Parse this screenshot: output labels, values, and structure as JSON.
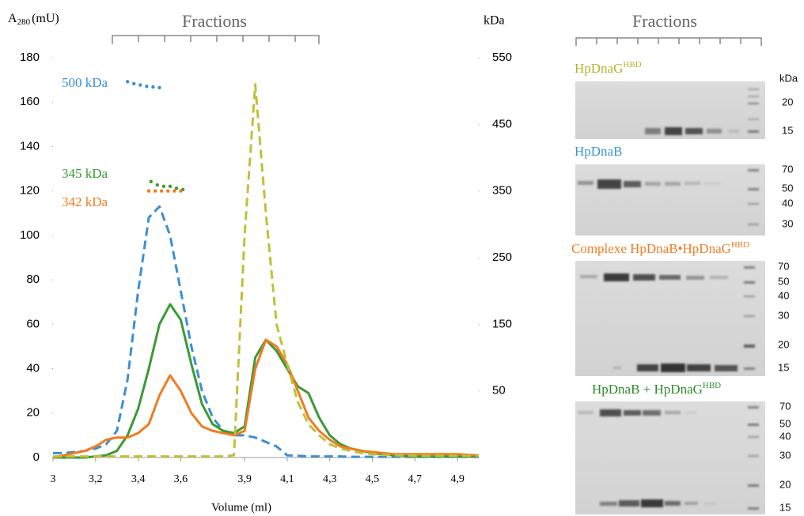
{
  "chart_data": {
    "type": "line",
    "ylabel": "A",
    "ylabel_sub": "280",
    "ylabel_unit": "(mU)",
    "y2label": "kDa",
    "top_label": "Fractions",
    "xlabel": "Volume (ml)",
    "xlim": [
      3,
      5.0
    ],
    "xticks": [
      3,
      {
        "value": 3.2,
        "label": "3,2"
      },
      {
        "value": 3.4,
        "label": "3,4"
      },
      {
        "value": 3.6,
        "label": "3,6"
      },
      {
        "value": 3.9,
        "label": "3,9"
      },
      {
        "value": 4.1,
        "label": "4,1"
      },
      {
        "value": 4.3,
        "label": "4,3"
      },
      {
        "value": 4.5,
        "label": "4,5"
      },
      {
        "value": 4.7,
        "label": "4,7"
      },
      {
        "value": 4.9,
        "label": "4,9"
      }
    ],
    "ylim": [
      0,
      180
    ],
    "yticks": [
      0,
      20,
      40,
      60,
      80,
      100,
      120,
      140,
      160,
      180
    ],
    "y2lim": [
      -50,
      550
    ],
    "y2ticks": [
      50,
      150,
      250,
      350,
      450,
      550
    ],
    "grid": false,
    "annotations": [
      "500 kDa",
      "345 kDa",
      "342 kDa"
    ],
    "series": [
      {
        "color": "#3d8fd1",
        "style": "dashed",
        "axis": "y",
        "x": [
          3.0,
          3.05,
          3.1,
          3.15,
          3.2,
          3.25,
          3.3,
          3.35,
          3.4,
          3.45,
          3.5,
          3.55,
          3.6,
          3.65,
          3.7,
          3.75,
          3.8,
          3.85,
          3.9,
          3.95,
          4.0,
          4.05,
          4.1,
          4.15,
          4.2,
          4.25,
          4.3,
          4.35,
          4.4,
          4.45,
          4.5,
          4.55,
          4.6,
          4.65,
          4.7,
          4.75,
          4.8,
          4.85,
          4.9,
          4.95,
          5.0
        ],
        "values": [
          2,
          2,
          2.5,
          3,
          4,
          6,
          12,
          35,
          75,
          108,
          113,
          100,
          75,
          50,
          30,
          18,
          12,
          10,
          10,
          9,
          7,
          5,
          1,
          0.8,
          0.5,
          0.5,
          0.5,
          0.5,
          0.3,
          0.3,
          0.3,
          0.3,
          0.3,
          0.3,
          0.3,
          0.3,
          0.3,
          0.3,
          0.3,
          0.3,
          0.3
        ]
      },
      {
        "color": "#3a9a35",
        "style": "solid",
        "axis": "y",
        "x": [
          3.0,
          3.05,
          3.1,
          3.15,
          3.2,
          3.25,
          3.3,
          3.35,
          3.4,
          3.45,
          3.5,
          3.55,
          3.6,
          3.65,
          3.7,
          3.75,
          3.8,
          3.85,
          3.9,
          3.95,
          4.0,
          4.05,
          4.1,
          4.15,
          4.2,
          4.25,
          4.3,
          4.35,
          4.4,
          4.45,
          4.5,
          4.55,
          4.6,
          4.65,
          4.7,
          4.75,
          4.8,
          4.85,
          4.9,
          4.95,
          5.0
        ],
        "values": [
          0,
          0,
          0,
          0,
          0.5,
          1,
          3,
          10,
          22,
          40,
          60,
          69,
          62,
          42,
          24,
          15,
          12,
          11,
          14,
          45,
          53,
          48,
          40,
          32,
          29,
          18,
          10,
          6,
          4,
          3,
          2,
          1.5,
          1,
          0.8,
          0.5,
          0.5,
          0.5,
          0.5,
          0.5,
          0.5,
          0.5
        ]
      },
      {
        "color": "#f07b20",
        "style": "solid",
        "axis": "y",
        "x": [
          3.0,
          3.05,
          3.1,
          3.15,
          3.2,
          3.25,
          3.3,
          3.35,
          3.4,
          3.45,
          3.5,
          3.55,
          3.6,
          3.65,
          3.7,
          3.75,
          3.8,
          3.85,
          3.9,
          3.95,
          4.0,
          4.05,
          4.1,
          4.15,
          4.2,
          4.25,
          4.3,
          4.35,
          4.4,
          4.45,
          4.5,
          4.55,
          4.6,
          4.65,
          4.7,
          4.75,
          4.8,
          4.85,
          4.9,
          4.95,
          5.0
        ],
        "values": [
          0,
          1,
          2,
          3,
          5,
          8,
          9,
          9,
          11,
          15,
          28,
          37,
          30,
          20,
          14,
          12,
          11,
          10,
          12,
          40,
          53,
          50,
          42,
          30,
          18,
          12,
          8,
          5,
          4,
          3,
          2.5,
          2,
          1.5,
          1.5,
          1.5,
          1.5,
          1.5,
          1.5,
          1.5,
          1.2,
          1
        ]
      },
      {
        "color": "#c0c03a",
        "style": "dashed",
        "axis": "y",
        "x": [
          3.0,
          3.05,
          3.1,
          3.15,
          3.2,
          3.25,
          3.3,
          3.35,
          3.4,
          3.45,
          3.5,
          3.55,
          3.6,
          3.65,
          3.7,
          3.75,
          3.8,
          3.85,
          3.9,
          3.95,
          4.0,
          4.05,
          4.1,
          4.15,
          4.2,
          4.25,
          4.3,
          4.35,
          4.4,
          4.45,
          4.5,
          4.55,
          4.6,
          4.65,
          4.7,
          4.75,
          4.8,
          4.85,
          4.9,
          4.95,
          5.0
        ],
        "values": [
          0.5,
          0.5,
          0.5,
          0.5,
          0.5,
          0.5,
          0.5,
          0.5,
          0.5,
          0.5,
          0.5,
          0.5,
          0.5,
          0.5,
          0.5,
          0.5,
          0.5,
          1,
          100,
          168,
          110,
          60,
          42,
          25,
          15,
          10,
          6,
          4,
          3,
          2,
          1.5,
          1.2,
          1,
          1,
          0.8,
          0.8,
          0.8,
          0.8,
          0.8,
          0.8,
          0.8
        ]
      },
      {
        "color": "#3d8fd1",
        "style": "dots",
        "axis": "y2",
        "x": [
          3.35,
          3.38,
          3.41,
          3.44,
          3.47,
          3.5
        ],
        "values": [
          514,
          511,
          509,
          507,
          506,
          505
        ]
      },
      {
        "color": "#3a9a35",
        "style": "dots",
        "axis": "y2",
        "x": [
          3.46,
          3.49,
          3.52,
          3.55,
          3.58,
          3.61
        ],
        "values": [
          364,
          359,
          357,
          357,
          354,
          352
        ]
      },
      {
        "color": "#f07b20",
        "style": "dots",
        "axis": "y2",
        "x": [
          3.45,
          3.48,
          3.51,
          3.54,
          3.57,
          3.6
        ],
        "values": [
          350,
          350,
          350,
          350,
          350,
          350
        ]
      }
    ]
  },
  "gels": {
    "title": "Fractions",
    "unit": "kDa",
    "panels": [
      {
        "title": "HpDnaG",
        "title_sup": "HBD",
        "color": "#b5b32c",
        "markers": [
          "20",
          "15"
        ]
      },
      {
        "title": "HpDnaB",
        "color": "#3a96d8",
        "markers": [
          "70",
          "50",
          "40",
          "30"
        ]
      },
      {
        "title": "Complexe HpDnaB•HpDnaG",
        "title_sup": "HBD",
        "color": "#f07d22",
        "markers": [
          "70",
          "50",
          "40",
          "30",
          "20",
          "15"
        ]
      },
      {
        "title": "HpDnaB + HpDnaG",
        "title_sup": "HBD",
        "color": "#2e8b2e",
        "markers": [
          "70",
          "50",
          "40",
          "30",
          "20",
          "15"
        ]
      }
    ]
  }
}
